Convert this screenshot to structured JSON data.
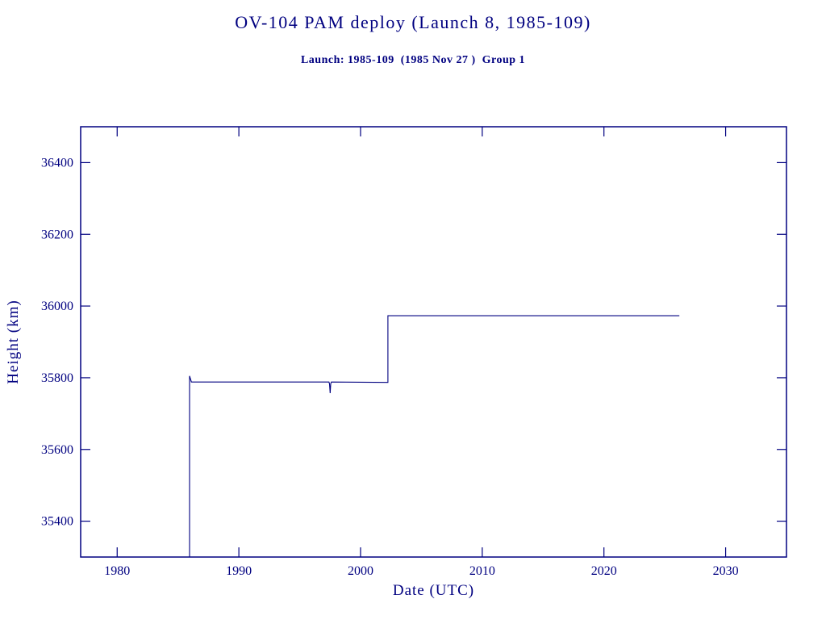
{
  "colors": {
    "ink": "#000080",
    "background": "#ffffff"
  },
  "chart_data": {
    "type": "line",
    "title": "OV-104 PAM deploy (Launch 8, 1985-109)",
    "subtitle": "Launch: 1985-109  (1985 Nov 27 )  Group 1",
    "xlabel": "Date (UTC)",
    "ylabel": "Height (km)",
    "xlim": [
      1977,
      2035
    ],
    "ylim": [
      35300,
      36500
    ],
    "xticks": [
      1980,
      1990,
      2000,
      2010,
      2020,
      2030
    ],
    "yticks": [
      35400,
      35600,
      35800,
      36000,
      36200,
      36400
    ],
    "grid": false,
    "legend": null,
    "line_color": "#000080",
    "series": [
      {
        "name": "Height (km)",
        "points": [
          [
            1985.95,
            35300
          ],
          [
            1985.95,
            35805
          ],
          [
            1986.1,
            35788
          ],
          [
            1997.4,
            35788
          ],
          [
            1997.45,
            35783
          ],
          [
            1997.5,
            35757
          ],
          [
            1997.55,
            35783
          ],
          [
            1997.6,
            35788
          ],
          [
            2002.25,
            35787
          ],
          [
            2002.25,
            35973
          ],
          [
            2026.2,
            35973
          ]
        ]
      }
    ]
  }
}
